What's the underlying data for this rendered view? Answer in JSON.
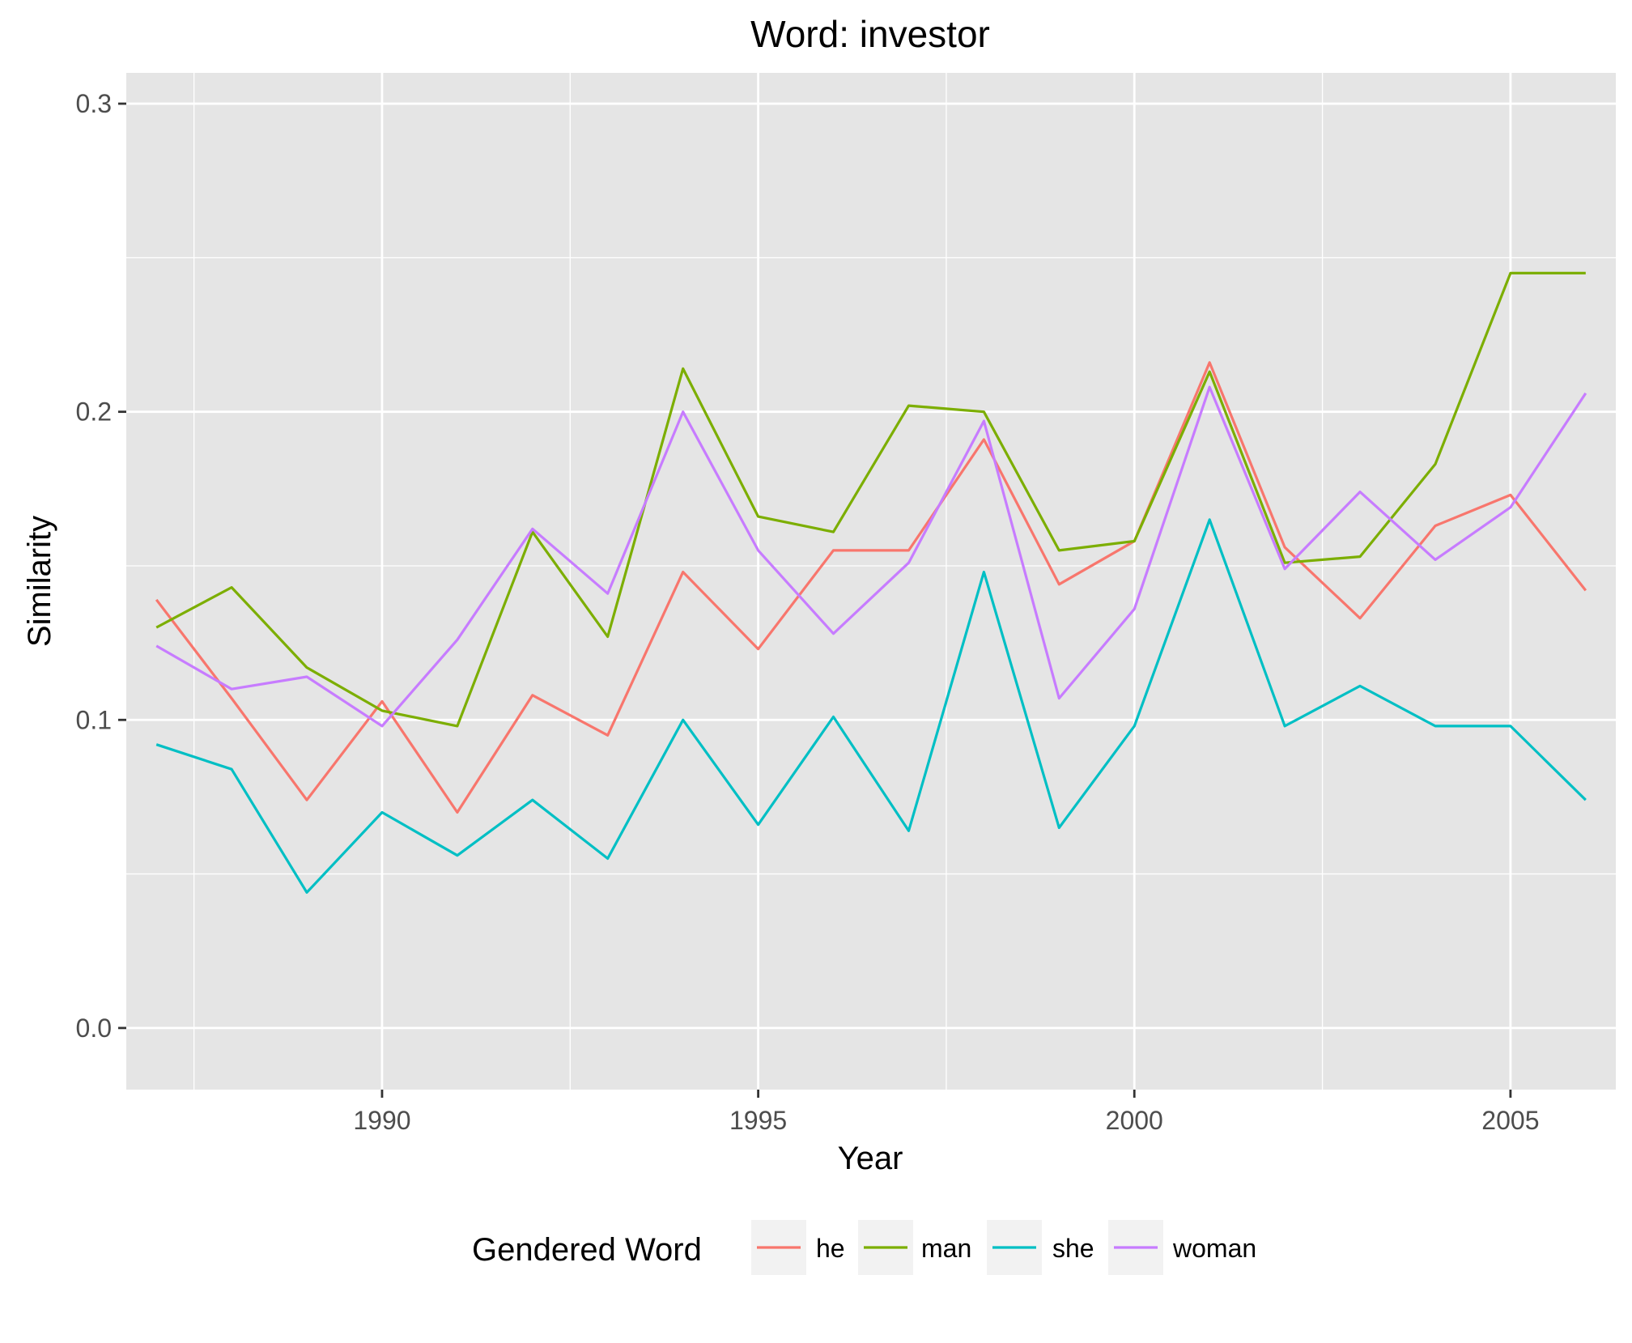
{
  "chart_data": {
    "type": "line",
    "title": "Word: investor",
    "xlabel": "Year",
    "ylabel": "Similarity",
    "xlim": [
      1986.6,
      2006.4
    ],
    "ylim": [
      -0.02,
      0.31
    ],
    "x_ticks": [
      1990,
      1995,
      2000,
      2005
    ],
    "x_tick_labels": [
      "1990",
      "1995",
      "2000",
      "2005"
    ],
    "y_ticks": [
      0.0,
      0.1,
      0.2,
      0.3
    ],
    "y_tick_labels": [
      "0.0",
      "0.1",
      "0.2",
      "0.3"
    ],
    "x_minor_ticks": [
      1987.5,
      1992.5,
      1997.5,
      2002.5
    ],
    "y_minor_ticks": [
      0.05,
      0.15,
      0.25
    ],
    "grid": true,
    "legend": {
      "title": "Gendered Word",
      "position": "bottom"
    },
    "x": [
      1987,
      1988,
      1989,
      1990,
      1991,
      1992,
      1993,
      1994,
      1995,
      1996,
      1997,
      1998,
      1999,
      2000,
      2001,
      2002,
      2003,
      2004,
      2005,
      2006
    ],
    "series": [
      {
        "name": "he",
        "color": "#F8766D",
        "values": [
          0.139,
          0.107,
          0.074,
          0.106,
          0.07,
          0.108,
          0.095,
          0.148,
          0.123,
          0.155,
          0.155,
          0.191,
          0.144,
          0.158,
          0.216,
          0.156,
          0.133,
          0.163,
          0.173,
          0.142
        ]
      },
      {
        "name": "man",
        "color": "#7CAE00",
        "values": [
          0.13,
          0.143,
          0.117,
          0.103,
          0.098,
          0.161,
          0.127,
          0.214,
          0.166,
          0.161,
          0.202,
          0.2,
          0.155,
          0.158,
          0.213,
          0.151,
          0.153,
          0.183,
          0.245,
          0.245
        ]
      },
      {
        "name": "she",
        "color": "#00BFC4",
        "values": [
          0.092,
          0.084,
          0.044,
          0.07,
          0.056,
          0.074,
          0.055,
          0.1,
          0.066,
          0.101,
          0.064,
          0.148,
          0.065,
          0.098,
          0.165,
          0.098,
          0.111,
          0.098,
          0.098,
          0.074
        ]
      },
      {
        "name": "woman",
        "color": "#C77CFF",
        "values": [
          0.124,
          0.11,
          0.114,
          0.098,
          0.126,
          0.162,
          0.141,
          0.2,
          0.155,
          0.128,
          0.151,
          0.197,
          0.107,
          0.136,
          0.208,
          0.149,
          0.174,
          0.152,
          0.169,
          0.206
        ]
      }
    ]
  }
}
